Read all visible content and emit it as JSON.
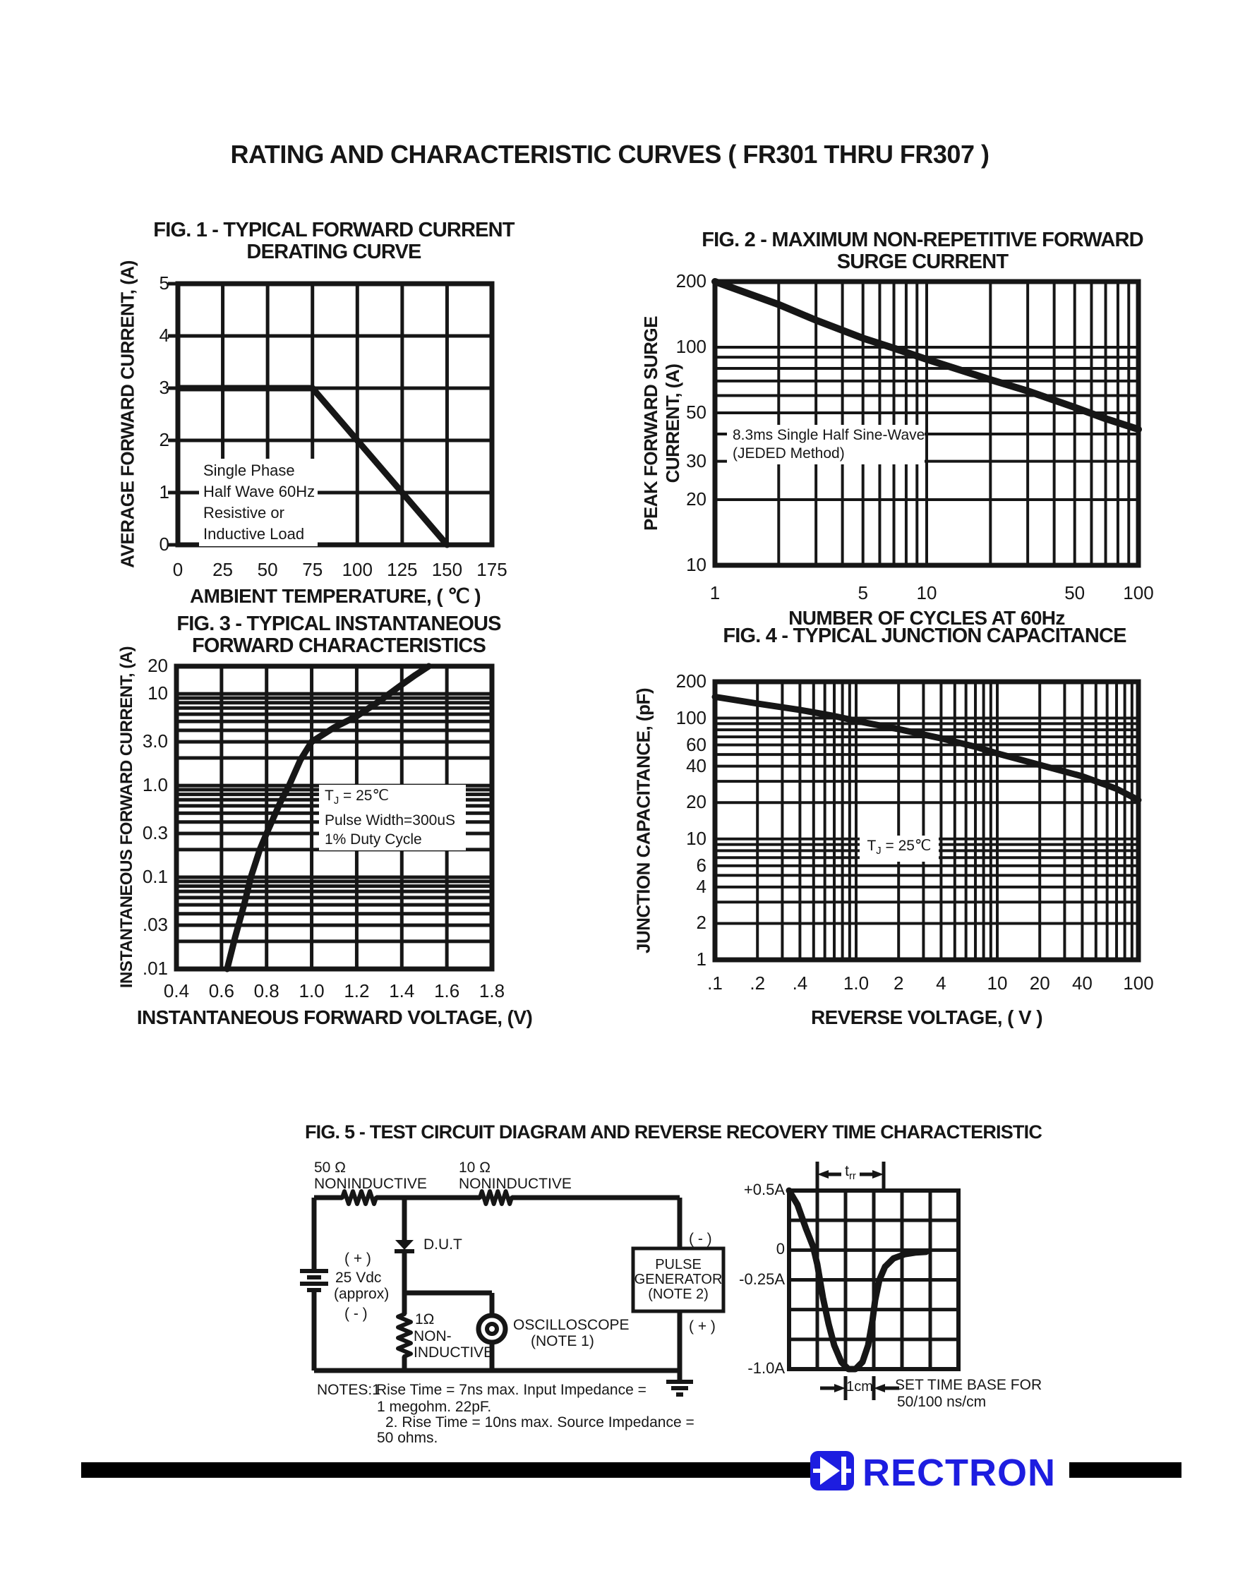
{
  "page_title": "RATING AND CHARACTERISTIC CURVES ( FR301 THRU FR307 )",
  "chart_data": [
    {
      "id": "fig1",
      "type": "line",
      "title_lines": [
        "FIG. 1 - TYPICAL FORWARD CURRENT",
        "DERATING CURVE"
      ],
      "xlabel": "AMBIENT TEMPERATURE, ( ℃ )",
      "ylabel_lines": [
        "AVERAGE FORWARD CURRENT, (A)"
      ],
      "x_axis": {
        "type": "linear",
        "min": 0,
        "max": 175,
        "grid_step": 25,
        "ticks": [
          {
            "v": 0,
            "label": "0"
          },
          {
            "v": 25,
            "label": "25"
          },
          {
            "v": 50,
            "label": "50"
          },
          {
            "v": 75,
            "label": "75"
          },
          {
            "v": 100,
            "label": "100"
          },
          {
            "v": 125,
            "label": "125"
          },
          {
            "v": 150,
            "label": "150"
          },
          {
            "v": 175,
            "label": "175"
          }
        ]
      },
      "y_axis": {
        "type": "linear",
        "min": 0,
        "max": 5,
        "grid_step": 1,
        "ticks": [
          {
            "v": 5,
            "label": "5"
          },
          {
            "v": 4,
            "label": "4"
          },
          {
            "v": 3,
            "label": "3"
          },
          {
            "v": 2,
            "label": "2"
          },
          {
            "v": 1,
            "label": "1"
          },
          {
            "v": 0,
            "label": "0"
          }
        ]
      },
      "annotation_lines": [
        "Single Phase",
        "Half Wave 60Hz",
        "Resistive or",
        "Inductive Load"
      ],
      "series": [
        {
          "name": "derating-curve",
          "points": [
            [
              0,
              3
            ],
            [
              75,
              3
            ],
            [
              150,
              0
            ]
          ]
        }
      ]
    },
    {
      "id": "fig2",
      "type": "line",
      "title_lines": [
        "FIG. 2 - MAXIMUM NON-REPETITIVE FORWARD",
        "SURGE CURRENT"
      ],
      "xlabel": "NUMBER OF CYCLES AT 60Hz",
      "ylabel_lines": [
        "PEAK FORWARD SURGE",
        "CURRENT, (A)"
      ],
      "x_axis": {
        "type": "log",
        "min": 1,
        "max": 100,
        "ticks": [
          {
            "v": 1,
            "label": "1"
          },
          {
            "v": 5,
            "label": "5"
          },
          {
            "v": 10,
            "label": "10"
          },
          {
            "v": 50,
            "label": "50"
          },
          {
            "v": 100,
            "label": "100"
          }
        ]
      },
      "y_axis": {
        "type": "log",
        "min": 10,
        "max": 200,
        "ticks": [
          {
            "v": 200,
            "label": "200"
          },
          {
            "v": 100,
            "label": "100"
          },
          {
            "v": 50,
            "label": "50"
          },
          {
            "v": 30,
            "label": "30"
          },
          {
            "v": 20,
            "label": "20"
          },
          {
            "v": 10,
            "label": "10"
          }
        ]
      },
      "annotation_lines": [
        "8.3ms Single Half Sine-Wave",
        "(JEDED Method)"
      ],
      "series": [
        {
          "name": "surge-current",
          "points": [
            [
              1,
              200
            ],
            [
              2,
              157
            ],
            [
              3,
              133
            ],
            [
              5,
              110
            ],
            [
              7,
              99
            ],
            [
              10,
              88
            ],
            [
              20,
              71
            ],
            [
              30,
              63
            ],
            [
              50,
              53
            ],
            [
              70,
              47
            ],
            [
              100,
              42
            ]
          ]
        }
      ]
    },
    {
      "id": "fig3",
      "type": "line",
      "title_lines": [
        "FIG. 3 - TYPICAL INSTANTANEOUS",
        "FORWARD CHARACTERISTICS"
      ],
      "xlabel": "INSTANTANEOUS FORWARD VOLTAGE, (V)",
      "ylabel_lines": [
        "INSTANTANEOUS FORWARD CURRENT, (A)"
      ],
      "x_axis": {
        "type": "linear",
        "min": 0.4,
        "max": 1.8,
        "grid_step": 0.2,
        "ticks": [
          {
            "v": 0.4,
            "label": "0.4"
          },
          {
            "v": 0.6,
            "label": "0.6"
          },
          {
            "v": 0.8,
            "label": "0.8"
          },
          {
            "v": 1.0,
            "label": "1.0"
          },
          {
            "v": 1.2,
            "label": "1.2"
          },
          {
            "v": 1.4,
            "label": "1.4"
          },
          {
            "v": 1.6,
            "label": "1.6"
          },
          {
            "v": 1.8,
            "label": "1.8"
          }
        ]
      },
      "y_axis": {
        "type": "log",
        "min": 0.01,
        "max": 20,
        "ticks": [
          {
            "v": 20,
            "label": "20"
          },
          {
            "v": 10,
            "label": "10"
          },
          {
            "v": 3.0,
            "label": "3.0"
          },
          {
            "v": 1.0,
            "label": "1.0"
          },
          {
            "v": 0.3,
            "label": "0.3"
          },
          {
            "v": 0.1,
            "label": "0.1"
          },
          {
            "v": 0.03,
            "label": ".03"
          },
          {
            "v": 0.01,
            "label": ".01"
          }
        ]
      },
      "annotation_lines": [
        "TJ = 25℃",
        "Pulse Width=300uS",
        "1% Duty Cycle"
      ],
      "series": [
        {
          "name": "forward-characteristic",
          "points": [
            [
              0.625,
              0.01
            ],
            [
              0.66,
              0.022
            ],
            [
              0.7,
              0.05
            ],
            [
              0.73,
              0.1
            ],
            [
              0.77,
              0.2
            ],
            [
              0.8,
              0.3
            ],
            [
              0.86,
              0.65
            ],
            [
              0.9,
              1.0
            ],
            [
              0.95,
              1.9
            ],
            [
              1.0,
              3.0
            ],
            [
              1.1,
              4.3
            ],
            [
              1.2,
              5.7
            ],
            [
              1.3,
              8.3
            ],
            [
              1.4,
              12.6
            ],
            [
              1.46,
              16
            ],
            [
              1.52,
              20
            ]
          ]
        }
      ]
    },
    {
      "id": "fig4",
      "type": "line",
      "title_lines": [
        "FIG. 4 - TYPICAL JUNCTION CAPACITANCE"
      ],
      "xlabel": "REVERSE VOLTAGE, ( V )",
      "ylabel_lines": [
        "JUNCTION CAPACITANCE, (pF)"
      ],
      "x_axis": {
        "type": "log",
        "min": 0.1,
        "max": 100,
        "ticks": [
          {
            "v": 0.1,
            "label": ".1"
          },
          {
            "v": 0.2,
            "label": ".2"
          },
          {
            "v": 0.4,
            "label": ".4"
          },
          {
            "v": 1.0,
            "label": "1.0"
          },
          {
            "v": 2,
            "label": "2"
          },
          {
            "v": 4,
            "label": "4"
          },
          {
            "v": 10,
            "label": "10"
          },
          {
            "v": 20,
            "label": "20"
          },
          {
            "v": 40,
            "label": "40"
          },
          {
            "v": 100,
            "label": "100"
          }
        ]
      },
      "y_axis": {
        "type": "log",
        "min": 1,
        "max": 200,
        "ticks": [
          {
            "v": 200,
            "label": "200"
          },
          {
            "v": 100,
            "label": "100"
          },
          {
            "v": 60,
            "label": "60"
          },
          {
            "v": 40,
            "label": "40"
          },
          {
            "v": 20,
            "label": "20"
          },
          {
            "v": 10,
            "label": "10"
          },
          {
            "v": 6,
            "label": "6"
          },
          {
            "v": 4,
            "label": "4"
          },
          {
            "v": 2,
            "label": "2"
          },
          {
            "v": 1,
            "label": "1"
          }
        ]
      },
      "annotation_lines": [
        "TJ = 25℃"
      ],
      "series": [
        {
          "name": "junction-capacitance",
          "points": [
            [
              0.1,
              150
            ],
            [
              0.2,
              132
            ],
            [
              0.4,
              117
            ],
            [
              0.7,
              104
            ],
            [
              1,
              95
            ],
            [
              2,
              81
            ],
            [
              4,
              68
            ],
            [
              7,
              58
            ],
            [
              10,
              51
            ],
            [
              20,
              41
            ],
            [
              40,
              33
            ],
            [
              70,
              26
            ],
            [
              100,
              21
            ]
          ]
        }
      ]
    },
    {
      "id": "fig5-waveform",
      "type": "line",
      "y_axis": {
        "min": -1.0,
        "max": 0.5,
        "grid_step": 0.25,
        "ticks": [
          {
            "v": 0.5,
            "label": "+0.5A"
          },
          {
            "v": 0,
            "label": "0"
          },
          {
            "v": -0.25,
            "label": "-0.25A"
          },
          {
            "v": -1.0,
            "label": "-1.0A"
          }
        ]
      },
      "x_axis": {
        "min": 0,
        "max": 6,
        "grid_step": 1
      },
      "trr_label": "trr",
      "cm_label": "1cm",
      "note_lines": [
        "SET TIME BASE FOR",
        "50/100 ns/cm"
      ],
      "series": [
        {
          "name": "reverse-recovery-current",
          "points": [
            [
              0,
              0.5
            ],
            [
              0.3,
              0.38
            ],
            [
              0.6,
              0.18
            ],
            [
              0.85,
              0.03
            ],
            [
              1.0,
              -0.12
            ],
            [
              1.2,
              -0.4
            ],
            [
              1.4,
              -0.62
            ],
            [
              1.6,
              -0.8
            ],
            [
              1.85,
              -0.94
            ],
            [
              2.1,
              -1.0
            ],
            [
              2.35,
              -1.0
            ],
            [
              2.6,
              -0.94
            ],
            [
              2.8,
              -0.8
            ],
            [
              2.95,
              -0.6
            ],
            [
              3.05,
              -0.42
            ],
            [
              3.2,
              -0.25
            ],
            [
              3.4,
              -0.14
            ],
            [
              3.7,
              -0.07
            ],
            [
              4.1,
              -0.035
            ],
            [
              4.5,
              -0.02
            ],
            [
              4.85,
              -0.015
            ]
          ]
        }
      ]
    }
  ],
  "circuit": {
    "title": "FIG. 5 - TEST CIRCUIT DIAGRAM  AND REVERSE RECOVERY TIME CHARACTERISTIC",
    "r1_value": "50 Ω",
    "r1_type": "NONINDUCTIVE",
    "r2_value": "10 Ω",
    "r2_type": "NONINDUCTIVE",
    "battery_plus": "( + )",
    "battery_voltage": "25 Vdc",
    "battery_approx": "(approx)",
    "battery_minus": "( - )",
    "dut": "D.U.T",
    "r3_value": "1Ω",
    "r3_line2": "NON-",
    "r3_line3": "INDUCTIVE",
    "scope_line1": "OSCILLOSCOPE",
    "scope_line2": "(NOTE 1)",
    "pg_line1": "PULSE",
    "pg_line2": "GENERATOR",
    "pg_line3": "(NOTE 2)",
    "pg_minus": "( - )",
    "pg_plus": "( + )",
    "notes_label": "NOTES:1",
    "note1_line1": "Rise Time = 7ns max. Input Impedance =",
    "note1_line2": "1 megohm. 22pF.",
    "note2_line1": "2. Rise Time = 10ns max. Source Impedance =",
    "note2_line2": "50 ohms."
  },
  "logo": {
    "brand": "RECTRON",
    "brand_color": "#1d1de0",
    "bar_color": "#000000"
  }
}
